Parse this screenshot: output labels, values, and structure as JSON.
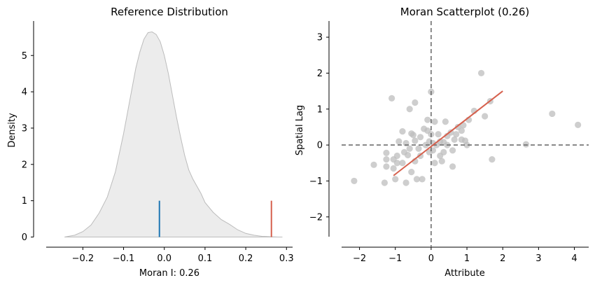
{
  "chart_data": [
    {
      "type": "area",
      "title": "Reference Distribution",
      "xlabel": "Moran I: 0.26",
      "ylabel": "Density",
      "xlim": [
        -0.29,
        0.315
      ],
      "ylim": [
        -0.28,
        5.95
      ],
      "xticks": [
        -0.2,
        -0.1,
        0.0,
        0.1,
        0.2,
        0.3
      ],
      "xtick_labels": [
        "−0.2",
        "−0.1",
        "0.0",
        "0.1",
        "0.2",
        "0.3"
      ],
      "yticks": [
        0,
        1,
        2,
        3,
        4,
        5
      ],
      "ytick_labels": [
        "0",
        "1",
        "2",
        "3",
        "4",
        "5"
      ],
      "grid": false,
      "density_curve": {
        "x": [
          -0.245,
          -0.22,
          -0.2,
          -0.18,
          -0.16,
          -0.14,
          -0.12,
          -0.1,
          -0.09,
          -0.08,
          -0.07,
          -0.06,
          -0.05,
          -0.04,
          -0.03,
          -0.02,
          -0.01,
          0.0,
          0.01,
          0.02,
          0.03,
          0.04,
          0.05,
          0.06,
          0.07,
          0.08,
          0.09,
          0.1,
          0.12,
          0.14,
          0.16,
          0.18,
          0.2,
          0.22,
          0.24,
          0.26,
          0.28,
          0.29
        ],
        "y": [
          0.0,
          0.05,
          0.15,
          0.33,
          0.66,
          1.1,
          1.8,
          2.85,
          3.45,
          4.05,
          4.65,
          5.1,
          5.45,
          5.63,
          5.65,
          5.58,
          5.38,
          5.0,
          4.5,
          3.9,
          3.3,
          2.75,
          2.25,
          1.85,
          1.6,
          1.4,
          1.2,
          0.95,
          0.68,
          0.48,
          0.35,
          0.2,
          0.1,
          0.05,
          0.02,
          0.01,
          0.0,
          0.0
        ],
        "fill": "#ececec",
        "stroke": "#bcbcbc"
      },
      "reference_lines": [
        {
          "x": -0.012,
          "height": 1.0,
          "color": "#1f77b4"
        },
        {
          "x": 0.263,
          "height": 1.0,
          "color": "#d6604d"
        }
      ]
    },
    {
      "type": "scatter",
      "title": "Moran Scatterplot (0.26)",
      "xlabel": "Attribute",
      "ylabel": "Spatial Lag",
      "xlim": [
        -2.5,
        4.4
      ],
      "ylim": [
        -2.55,
        3.45
      ],
      "xticks": [
        -2,
        -1,
        0,
        1,
        2,
        3,
        4
      ],
      "xtick_labels": [
        "−2",
        "−1",
        "0",
        "1",
        "2",
        "3",
        "4"
      ],
      "yticks": [
        -2,
        -1,
        0,
        1,
        2,
        3
      ],
      "ytick_labels": [
        "−2",
        "−1",
        "0",
        "1",
        "2",
        "3"
      ],
      "grid": false,
      "point_color": "#bdbdbd",
      "line_color": "#d6604d",
      "axis_line_color": "#6e6e6e",
      "points": [
        [
          -2.15,
          -1.0
        ],
        [
          -1.6,
          -0.55
        ],
        [
          -1.3,
          -1.05
        ],
        [
          -1.25,
          -0.6
        ],
        [
          -1.25,
          -0.4
        ],
        [
          -1.25,
          -0.22
        ],
        [
          -1.1,
          1.3
        ],
        [
          -1.05,
          -0.65
        ],
        [
          -1.05,
          -0.4
        ],
        [
          -1.0,
          -0.95
        ],
        [
          -0.95,
          -0.3
        ],
        [
          -0.95,
          -0.5
        ],
        [
          -0.9,
          0.1
        ],
        [
          -0.8,
          0.38
        ],
        [
          -0.8,
          -0.5
        ],
        [
          -0.75,
          -0.2
        ],
        [
          -0.7,
          -1.05
        ],
        [
          -0.7,
          0.05
        ],
        [
          -0.65,
          -0.28
        ],
        [
          -0.6,
          1.0
        ],
        [
          -0.6,
          -0.1
        ],
        [
          -0.55,
          0.32
        ],
        [
          -0.55,
          -0.75
        ],
        [
          -0.5,
          0.28
        ],
        [
          -0.45,
          1.18
        ],
        [
          -0.45,
          -0.45
        ],
        [
          -0.45,
          0.12
        ],
        [
          -0.4,
          -0.95
        ],
        [
          -0.35,
          -0.1
        ],
        [
          -0.3,
          0.22
        ],
        [
          -0.3,
          -0.3
        ],
        [
          -0.25,
          -0.95
        ],
        [
          -0.2,
          0.45
        ],
        [
          -0.15,
          0.0
        ],
        [
          -0.1,
          0.4
        ],
        [
          -0.1,
          0.7
        ],
        [
          -0.05,
          -0.2
        ],
        [
          -0.05,
          0.1
        ],
        [
          0.0,
          1.48
        ],
        [
          0.0,
          0.3
        ],
        [
          0.05,
          0.05
        ],
        [
          0.05,
          -0.15
        ],
        [
          0.1,
          -0.5
        ],
        [
          0.1,
          0.65
        ],
        [
          0.15,
          0.0
        ],
        [
          0.2,
          0.3
        ],
        [
          0.25,
          0.1
        ],
        [
          0.25,
          -0.3
        ],
        [
          0.3,
          -0.45
        ],
        [
          0.35,
          0.08
        ],
        [
          0.35,
          -0.2
        ],
        [
          0.4,
          0.65
        ],
        [
          0.45,
          0.25
        ],
        [
          0.45,
          0.0
        ],
        [
          0.55,
          0.35
        ],
        [
          0.6,
          -0.15
        ],
        [
          0.6,
          -0.6
        ],
        [
          0.65,
          0.15
        ],
        [
          0.7,
          0.3
        ],
        [
          0.75,
          0.5
        ],
        [
          0.85,
          0.15
        ],
        [
          0.85,
          0.4
        ],
        [
          0.9,
          0.55
        ],
        [
          0.95,
          0.12
        ],
        [
          1.0,
          0.0
        ],
        [
          1.05,
          0.7
        ],
        [
          1.2,
          0.95
        ],
        [
          1.4,
          2.0
        ],
        [
          1.5,
          0.8
        ],
        [
          1.65,
          1.22
        ],
        [
          1.7,
          -0.4
        ],
        [
          2.65,
          0.02
        ],
        [
          3.38,
          0.87
        ],
        [
          4.1,
          0.56
        ]
      ],
      "fit_line": {
        "x": [
          -1.05,
          2.0
        ],
        "y": [
          -0.85,
          1.5
        ]
      }
    }
  ]
}
